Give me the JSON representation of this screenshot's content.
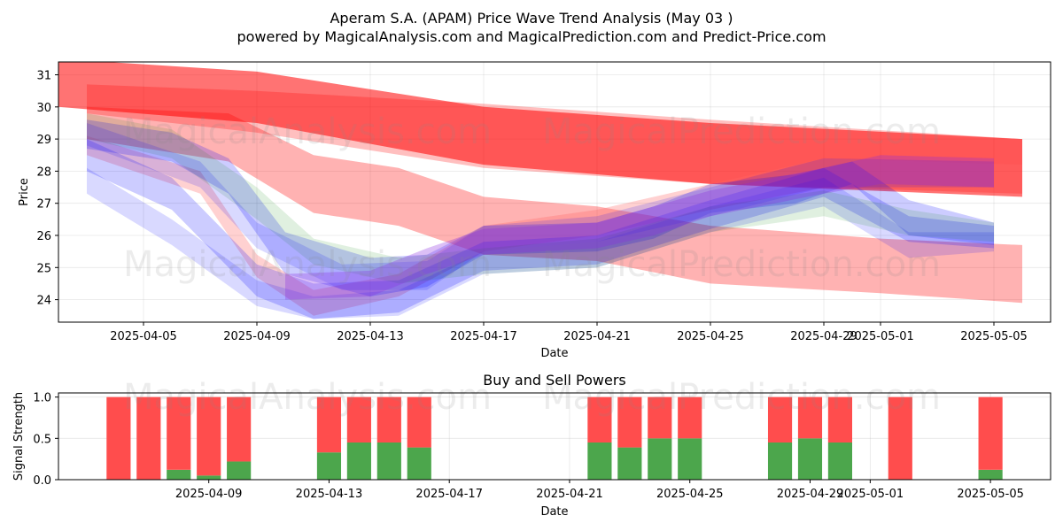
{
  "title": "Aperam S.A. (APAM) Price Wave Trend Analysis (May 03 )",
  "subtitle": "powered by MagicalAnalysis.com and MagicalPrediction.com and Predict-Price.com",
  "watermarks": [
    "MagicalAnalysis.com",
    "MagicalPrediction.com"
  ],
  "colors": {
    "red": "#ff0000",
    "blue": "#0000ff",
    "green": "#008000",
    "pink": "#ff6666",
    "buy": "#4ca64c",
    "sell": "#ff4d4d"
  },
  "chart_data": [
    {
      "type": "area",
      "title": "",
      "xlabel": "Date",
      "ylabel": "Price",
      "xlim": [
        "2025-04-02",
        "2025-05-07"
      ],
      "ylim": [
        23.3,
        31.4
      ],
      "x_ticks": [
        "2025-04-05",
        "2025-04-09",
        "2025-04-13",
        "2025-04-17",
        "2025-04-21",
        "2025-04-25",
        "2025-04-29",
        "2025-05-01",
        "2025-05-05"
      ],
      "y_ticks": [
        24,
        25,
        26,
        27,
        28,
        29,
        30,
        31
      ],
      "grid": true,
      "bands": [
        {
          "color": "red",
          "opacity": 0.55,
          "x": [
            "2025-04-02",
            "2025-04-09",
            "2025-04-17",
            "2025-04-25",
            "2025-05-06"
          ],
          "lower": [
            30.0,
            29.5,
            28.2,
            27.6,
            27.2
          ],
          "upper": [
            31.5,
            31.1,
            30.0,
            29.5,
            29.0
          ]
        },
        {
          "color": "red",
          "opacity": 0.25,
          "x": [
            "2025-04-03",
            "2025-04-09",
            "2025-04-17",
            "2025-04-25",
            "2025-05-06"
          ],
          "lower": [
            29.8,
            29.2,
            28.1,
            27.6,
            27.3
          ],
          "upper": [
            30.7,
            30.5,
            30.1,
            29.6,
            29.0
          ]
        },
        {
          "color": "red",
          "opacity": 0.3,
          "x": [
            "2025-04-03",
            "2025-04-08",
            "2025-04-11",
            "2025-04-14",
            "2025-04-17",
            "2025-04-21",
            "2025-04-25",
            "2025-05-01",
            "2025-05-06"
          ],
          "lower": [
            29.0,
            28.3,
            26.7,
            26.3,
            25.4,
            25.2,
            24.5,
            24.2,
            23.9
          ],
          "upper": [
            30.0,
            29.8,
            28.5,
            28.1,
            27.2,
            26.9,
            26.3,
            25.9,
            25.7
          ]
        },
        {
          "color": "pink",
          "opacity": 0.3,
          "x": [
            "2025-04-03",
            "2025-04-07",
            "2025-04-09",
            "2025-04-11",
            "2025-04-14",
            "2025-04-17",
            "2025-04-21",
            "2025-04-25",
            "2025-04-29",
            "2025-05-06"
          ],
          "lower": [
            28.5,
            27.3,
            24.7,
            23.5,
            24.1,
            25.5,
            26.0,
            26.8,
            27.5,
            27.3
          ],
          "upper": [
            29.1,
            28.0,
            25.4,
            24.3,
            24.8,
            26.3,
            26.8,
            27.6,
            28.4,
            28.2
          ]
        },
        {
          "color": "blue",
          "opacity": 0.2,
          "x": [
            "2025-04-03",
            "2025-04-06",
            "2025-04-08",
            "2025-04-10",
            "2025-04-13",
            "2025-04-15",
            "2025-04-17",
            "2025-04-21",
            "2025-04-23",
            "2025-04-25",
            "2025-04-28",
            "2025-04-30",
            "2025-05-02",
            "2025-05-05"
          ],
          "lower": [
            28.7,
            28.3,
            27.3,
            24.8,
            24.1,
            24.4,
            25.4,
            25.5,
            25.9,
            26.7,
            27.0,
            27.6,
            26.0,
            25.7
          ],
          "upper": [
            29.6,
            29.2,
            28.4,
            26.1,
            25.3,
            25.4,
            26.3,
            26.4,
            26.9,
            27.6,
            27.9,
            28.3,
            27.1,
            26.4
          ]
        },
        {
          "color": "blue",
          "opacity": 0.2,
          "x": [
            "2025-04-03",
            "2025-04-06",
            "2025-04-09",
            "2025-04-11",
            "2025-04-14",
            "2025-04-17",
            "2025-04-21",
            "2025-04-25",
            "2025-04-29",
            "2025-05-02",
            "2025-05-05"
          ],
          "lower": [
            28.0,
            26.8,
            24.1,
            23.4,
            23.6,
            24.9,
            25.1,
            26.2,
            27.2,
            25.8,
            25.6
          ],
          "upper": [
            29.0,
            27.8,
            25.1,
            24.5,
            24.6,
            25.8,
            26.0,
            27.1,
            28.1,
            26.6,
            26.3
          ]
        },
        {
          "color": "blue",
          "opacity": 0.15,
          "x": [
            "2025-04-03",
            "2025-04-06",
            "2025-04-09",
            "2025-04-11",
            "2025-04-14",
            "2025-04-17",
            "2025-04-21",
            "2025-04-25",
            "2025-04-29",
            "2025-05-02",
            "2025-05-05"
          ],
          "lower": [
            27.3,
            25.7,
            23.8,
            23.4,
            23.5,
            24.8,
            25.0,
            26.1,
            26.9,
            25.3,
            25.5
          ],
          "upper": [
            28.1,
            26.5,
            24.6,
            24.1,
            24.3,
            25.5,
            25.8,
            26.9,
            27.8,
            26.1,
            26.1
          ]
        },
        {
          "color": "green",
          "opacity": 0.12,
          "x": [
            "2025-04-03",
            "2025-04-06",
            "2025-04-09",
            "2025-04-11",
            "2025-04-14",
            "2025-04-17",
            "2025-04-21",
            "2025-04-25",
            "2025-04-29",
            "2025-05-02",
            "2025-05-05"
          ],
          "lower": [
            29.0,
            28.4,
            26.5,
            25.1,
            24.5,
            24.8,
            25.0,
            26.1,
            26.6,
            26.0,
            25.8
          ],
          "upper": [
            29.8,
            29.3,
            27.5,
            25.9,
            25.3,
            25.6,
            25.9,
            26.9,
            27.4,
            26.8,
            26.4
          ]
        },
        {
          "color": "blue",
          "opacity": 0.15,
          "x": [
            "2025-04-03",
            "2025-04-07",
            "2025-04-09",
            "2025-04-12",
            "2025-04-15",
            "2025-04-17",
            "2025-04-21",
            "2025-04-25",
            "2025-04-29",
            "2025-05-05"
          ],
          "lower": [
            28.8,
            27.5,
            25.6,
            24.3,
            24.3,
            25.5,
            25.8,
            26.6,
            27.5,
            27.5
          ],
          "upper": [
            29.5,
            28.3,
            26.4,
            25.1,
            25.2,
            26.3,
            26.6,
            27.5,
            28.4,
            28.3
          ]
        },
        {
          "color": "purple",
          "opacity": 0.3,
          "x": [
            "2025-04-10",
            "2025-04-13",
            "2025-04-15",
            "2025-04-17",
            "2025-04-21",
            "2025-04-23",
            "2025-04-25",
            "2025-04-29",
            "2025-05-01",
            "2025-05-05"
          ],
          "lower": [
            24.0,
            24.1,
            24.8,
            25.4,
            25.6,
            26.0,
            26.6,
            27.3,
            27.6,
            27.5
          ],
          "upper": [
            24.8,
            24.9,
            25.6,
            26.2,
            26.4,
            26.9,
            27.4,
            28.1,
            28.5,
            28.4
          ]
        }
      ]
    },
    {
      "type": "bar",
      "title": "Buy and Sell Powers",
      "xlabel": "Date",
      "ylabel": "Signal Strength",
      "ylim": [
        0,
        1.05
      ],
      "y_ticks": [
        0.0,
        0.5,
        1.0
      ],
      "x_ticks": [
        "2025-04-09",
        "2025-04-13",
        "2025-04-17",
        "2025-04-21",
        "2025-04-25",
        "2025-04-29",
        "2025-05-01",
        "2025-05-05"
      ],
      "grid": true,
      "categories": [
        "2025-04-06",
        "2025-04-07",
        "2025-04-08",
        "2025-04-09",
        "2025-04-10",
        "2025-04-13",
        "2025-04-14",
        "2025-04-15",
        "2025-04-16",
        "2025-04-22",
        "2025-04-23",
        "2025-04-24",
        "2025-04-25",
        "2025-04-28",
        "2025-04-29",
        "2025-04-30",
        "2025-05-02",
        "2025-05-05"
      ],
      "series": [
        {
          "name": "",
          "color": "buy",
          "values": [
            0,
            0,
            0.12,
            0.05,
            0.22,
            0.33,
            0.45,
            0.45,
            0.39,
            0.45,
            0.39,
            0.5,
            0.5,
            0.45,
            0.5,
            0.45,
            0,
            0.12
          ]
        },
        {
          "name": "",
          "color": "sell",
          "values": [
            1,
            1,
            0.88,
            0.95,
            0.78,
            0.67,
            0.55,
            0.55,
            0.61,
            0.55,
            0.61,
            0.5,
            0.5,
            0.55,
            0.5,
            0.55,
            1,
            0.88
          ]
        }
      ]
    }
  ]
}
